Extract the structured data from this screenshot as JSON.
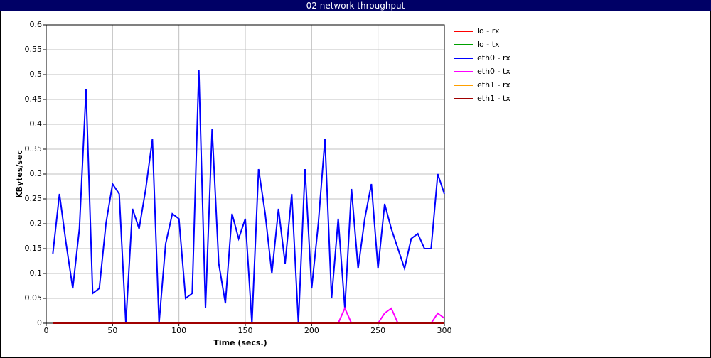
{
  "chart_data": {
    "type": "line",
    "title": "02 network throughput",
    "x_label": "Time (secs.)",
    "y_label": "KBytes/sec",
    "xlim": [
      0,
      300
    ],
    "xticks": [
      0,
      50,
      100,
      150,
      200,
      250,
      300
    ],
    "ylim": [
      0,
      0.6
    ],
    "yticks": [
      0,
      0.05,
      0.1,
      0.15,
      0.2,
      0.25,
      0.3,
      0.35,
      0.4,
      0.45,
      0.5,
      0.55,
      0.6
    ],
    "grid": true,
    "legend": "right",
    "x": [
      5,
      10,
      15,
      20,
      25,
      30,
      35,
      40,
      45,
      50,
      55,
      60,
      65,
      70,
      75,
      80,
      85,
      90,
      95,
      100,
      105,
      110,
      115,
      120,
      125,
      130,
      135,
      140,
      145,
      150,
      155,
      160,
      165,
      170,
      175,
      180,
      185,
      190,
      195,
      200,
      205,
      210,
      215,
      220,
      225,
      230,
      235,
      240,
      245,
      250,
      255,
      260,
      265,
      270,
      275,
      280,
      285,
      290,
      295,
      300
    ],
    "series": [
      {
        "name": "lo - rx",
        "color": "#ff0000",
        "values": [
          0,
          0,
          0,
          0,
          0,
          0,
          0,
          0,
          0,
          0,
          0,
          0,
          0,
          0,
          0,
          0,
          0,
          0,
          0,
          0,
          0,
          0,
          0,
          0,
          0,
          0,
          0,
          0,
          0,
          0,
          0,
          0,
          0,
          0,
          0,
          0,
          0,
          0,
          0,
          0,
          0,
          0,
          0,
          0,
          0,
          0,
          0,
          0,
          0,
          0,
          0,
          0,
          0,
          0,
          0,
          0,
          0,
          0,
          0,
          0
        ]
      },
      {
        "name": "lo - tx",
        "color": "#00a000",
        "values": [
          0,
          0,
          0,
          0,
          0,
          0,
          0,
          0,
          0,
          0,
          0,
          0,
          0,
          0,
          0,
          0,
          0,
          0,
          0,
          0,
          0,
          0,
          0,
          0,
          0,
          0,
          0,
          0,
          0,
          0,
          0,
          0,
          0,
          0,
          0,
          0,
          0,
          0,
          0,
          0,
          0,
          0,
          0,
          0,
          0,
          0,
          0,
          0,
          0,
          0,
          0,
          0,
          0,
          0,
          0,
          0,
          0,
          0,
          0,
          0
        ]
      },
      {
        "name": "eth0 - rx",
        "color": "#0000ff",
        "values": [
          0.14,
          0.26,
          0.16,
          0.07,
          0.19,
          0.47,
          0.06,
          0.07,
          0.2,
          0.28,
          0.26,
          0,
          0.23,
          0.19,
          0.27,
          0.37,
          0,
          0.16,
          0.22,
          0.21,
          0.05,
          0.06,
          0.51,
          0.03,
          0.39,
          0.12,
          0.04,
          0.22,
          0.17,
          0.21,
          0,
          0.31,
          0.22,
          0.1,
          0.23,
          0.12,
          0.26,
          0,
          0.31,
          0.07,
          0.2,
          0.37,
          0.05,
          0.21,
          0.03,
          0.27,
          0.11,
          0.21,
          0.28,
          0.11,
          0.24,
          0.19,
          0.15,
          0.11,
          0.17,
          0.18,
          0.15,
          0.15,
          0.3,
          0.26
        ]
      },
      {
        "name": "eth0 - tx",
        "color": "#ff00ff",
        "values": [
          0,
          0,
          0,
          0,
          0,
          0,
          0,
          0,
          0,
          0,
          0,
          0,
          0,
          0,
          0,
          0,
          0,
          0,
          0,
          0,
          0,
          0,
          0,
          0,
          0,
          0,
          0,
          0,
          0,
          0,
          0,
          0,
          0,
          0,
          0,
          0,
          0,
          0,
          0,
          0,
          0,
          0,
          0,
          0,
          0.03,
          0,
          0,
          0,
          0,
          0,
          0.02,
          0.03,
          0,
          0,
          0,
          0,
          0,
          0,
          0.02,
          0.01
        ]
      },
      {
        "name": "eth1 - rx",
        "color": "#ffa000",
        "values": [
          0,
          0,
          0,
          0,
          0,
          0,
          0,
          0,
          0,
          0,
          0,
          0,
          0,
          0,
          0,
          0,
          0,
          0,
          0,
          0,
          0,
          0,
          0,
          0,
          0,
          0,
          0,
          0,
          0,
          0,
          0,
          0,
          0,
          0,
          0,
          0,
          0,
          0,
          0,
          0,
          0,
          0,
          0,
          0,
          0,
          0,
          0,
          0,
          0,
          0,
          0,
          0,
          0,
          0,
          0,
          0,
          0,
          0,
          0,
          0
        ]
      },
      {
        "name": "eth1 - tx",
        "color": "#a00000",
        "values": [
          0,
          0,
          0,
          0,
          0,
          0,
          0,
          0,
          0,
          0,
          0,
          0,
          0,
          0,
          0,
          0,
          0,
          0,
          0,
          0,
          0,
          0,
          0,
          0,
          0,
          0,
          0,
          0,
          0,
          0,
          0,
          0,
          0,
          0,
          0,
          0,
          0,
          0,
          0,
          0,
          0,
          0,
          0,
          0,
          0,
          0,
          0,
          0,
          0,
          0,
          0,
          0,
          0,
          0,
          0,
          0,
          0,
          0,
          0,
          0
        ]
      }
    ]
  }
}
